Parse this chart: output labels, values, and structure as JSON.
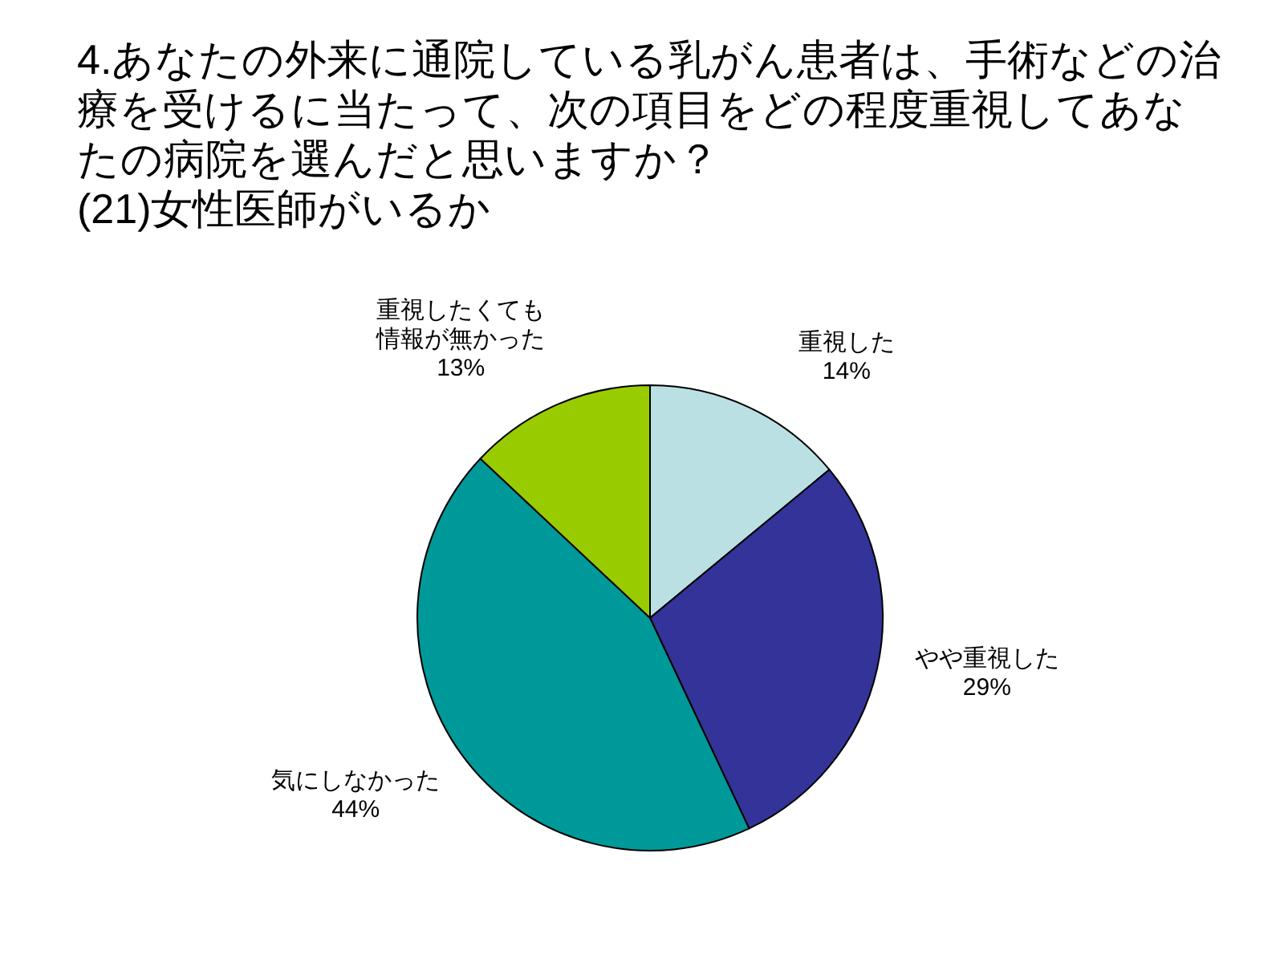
{
  "chart_data": {
    "type": "pie",
    "title": "4.あなたの外来に通院している乳がん患者は、手術などの治療を受けるに当たって、次の項目をどの程度重視してあなたの病院を選んだと思いますか？",
    "subtitle": "(21)女性医師がいるか",
    "categories": [
      "重視した",
      "やや重視した",
      "気にしなかった",
      "重視したくても情報が無かった"
    ],
    "values": [
      14,
      29,
      44,
      13
    ],
    "colors": [
      "#bbe0e3",
      "#333399",
      "#009999",
      "#99cc00"
    ],
    "value_labels": [
      "14%",
      "29%",
      "44%",
      "13%"
    ]
  }
}
